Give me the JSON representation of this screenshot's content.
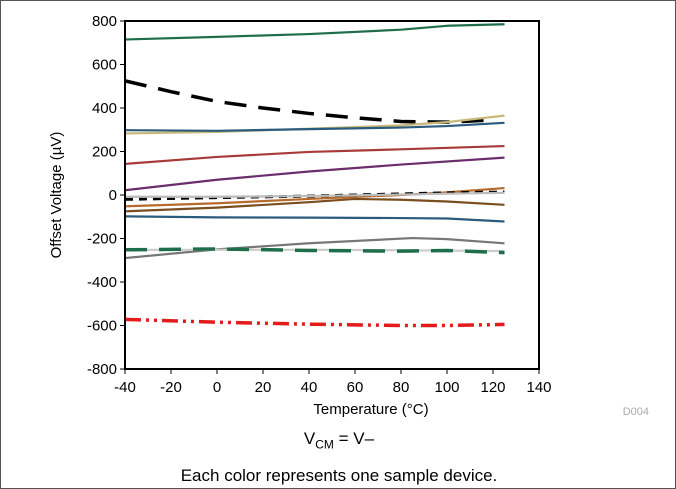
{
  "figure_code": "D004",
  "caption": {
    "vcm_main": "V",
    "vcm_sub": "CM",
    "vcm_rest": " = V–",
    "note": "Each color represents one sample device."
  },
  "chart_data": {
    "type": "line",
    "title": "",
    "xlabel": "Temperature (°C)",
    "ylabel": "Offset Voltage (µV)",
    "xlim": [
      -40,
      140
    ],
    "ylim": [
      -800,
      800
    ],
    "xticks": [
      -40,
      -20,
      0,
      20,
      40,
      60,
      80,
      100,
      120,
      140
    ],
    "yticks": [
      -800,
      -600,
      -400,
      -200,
      0,
      200,
      400,
      600,
      800
    ],
    "grid": false,
    "legend": "none",
    "series": [
      {
        "color": "#1e6e4a",
        "dash": "solid",
        "x": [
          -40,
          0,
          40,
          80,
          100,
          125
        ],
        "y": [
          715,
          727,
          740,
          760,
          778,
          785
        ]
      },
      {
        "color": "#000000",
        "dash": "long-dash",
        "x": [
          -40,
          -20,
          0,
          20,
          40,
          60,
          80,
          100,
          120
        ],
        "y": [
          525,
          475,
          430,
          400,
          375,
          355,
          338,
          335,
          345
        ]
      },
      {
        "color": "#c8b87a",
        "dash": "solid",
        "x": [
          -40,
          0,
          40,
          80,
          100,
          125
        ],
        "y": [
          283,
          290,
          305,
          320,
          335,
          365
        ]
      },
      {
        "color": "#2b5c7e",
        "dash": "solid",
        "x": [
          -40,
          0,
          40,
          80,
          100,
          125
        ],
        "y": [
          298,
          295,
          303,
          310,
          317,
          332
        ]
      },
      {
        "color": "#a93a3a",
        "dash": "solid",
        "x": [
          -40,
          0,
          40,
          80,
          125
        ],
        "y": [
          143,
          175,
          198,
          210,
          225
        ]
      },
      {
        "color": "#6b2d6b",
        "dash": "solid",
        "x": [
          -40,
          0,
          40,
          80,
          125
        ],
        "y": [
          22,
          70,
          108,
          140,
          172
        ]
      },
      {
        "color": "#b86a2a",
        "dash": "solid",
        "x": [
          -40,
          0,
          40,
          80,
          100,
          125
        ],
        "y": [
          -52,
          -38,
          -18,
          0,
          12,
          32
        ]
      },
      {
        "color": "#000000",
        "dash": "short-dash",
        "x": [
          -40,
          0,
          40,
          80,
          100,
          125
        ],
        "y": [
          -20,
          -12,
          -5,
          5,
          10,
          14
        ]
      },
      {
        "color": "#bbbbbb",
        "dash": "solid",
        "x": [
          -40,
          0,
          40,
          80,
          100,
          125
        ],
        "y": [
          -8,
          -8,
          -5,
          2,
          6,
          10
        ]
      },
      {
        "color": "#7a4e1e",
        "dash": "solid",
        "x": [
          -40,
          0,
          40,
          60,
          80,
          100,
          125
        ],
        "y": [
          -75,
          -58,
          -33,
          -18,
          -22,
          -30,
          -45
        ]
      },
      {
        "color": "#2b5c7e",
        "dash": "solid",
        "x": [
          -40,
          0,
          40,
          80,
          100,
          125
        ],
        "y": [
          -98,
          -103,
          -104,
          -106,
          -108,
          -122
        ]
      },
      {
        "color": "#777777",
        "dash": "solid",
        "x": [
          -40,
          0,
          40,
          85,
          100,
          125
        ],
        "y": [
          -290,
          -250,
          -222,
          -198,
          -203,
          -222
        ]
      },
      {
        "color": "#cccccc",
        "dash": "solid",
        "x": [
          -40,
          0,
          40,
          80,
          125
        ],
        "y": [
          -252,
          -252,
          -252,
          -254,
          -258
        ]
      },
      {
        "color": "#1e6e4a",
        "dash": "long-dash",
        "x": [
          -40,
          0,
          40,
          80,
          100,
          125
        ],
        "y": [
          -252,
          -248,
          -255,
          -258,
          -255,
          -265
        ]
      },
      {
        "color": "#e31b1b",
        "dash": "dash-dot-dot",
        "x": [
          -40,
          0,
          40,
          80,
          100,
          125
        ],
        "y": [
          -572,
          -585,
          -594,
          -600,
          -600,
          -595
        ]
      }
    ]
  }
}
